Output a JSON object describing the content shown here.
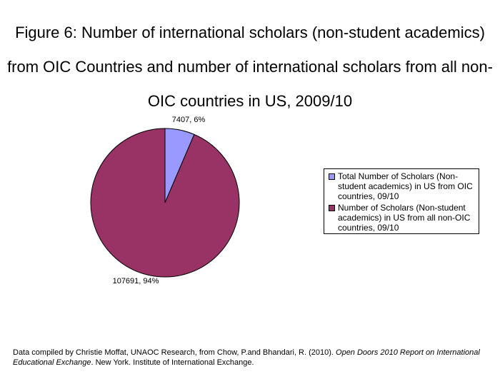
{
  "title_lines": [
    "Figure 6: Number of international scholars (non-student academics)",
    "from OIC Countries and number of international scholars from all non-",
    "OIC countries in US, 2009/10"
  ],
  "chart_data": {
    "type": "pie",
    "slices": [
      {
        "name": "Total Number of Scholars (Non-student academics) in US from OIC countries, 09/10",
        "value": 7407,
        "percent": 6,
        "label": "7407, 6%",
        "color": "#9999ff"
      },
      {
        "name": "Number of Scholars (Non-student academics) in US from all non-OIC countries, 09/10",
        "value": 107691,
        "percent": 94,
        "label": "107691, 94%",
        "color": "#993366"
      }
    ],
    "legend_position": "right"
  },
  "legend": {
    "items": [
      {
        "text": "Total Number of Scholars (Non-student academics) in US from OIC countries, 09/10",
        "color": "#9999ff"
      },
      {
        "text": "Number of Scholars (Non-student academics) in US from all non-OIC countries, 09/10",
        "color": "#993366"
      }
    ]
  },
  "source": {
    "prefix": "Data compiled by Christie Moffat, UNAOC Research, from Chow, P.and Bhandari, R. (2010). ",
    "italic": "Open Doors 2010 Report on International Educational Exchange",
    "suffix": ". New York. Institute of International Exchange."
  }
}
